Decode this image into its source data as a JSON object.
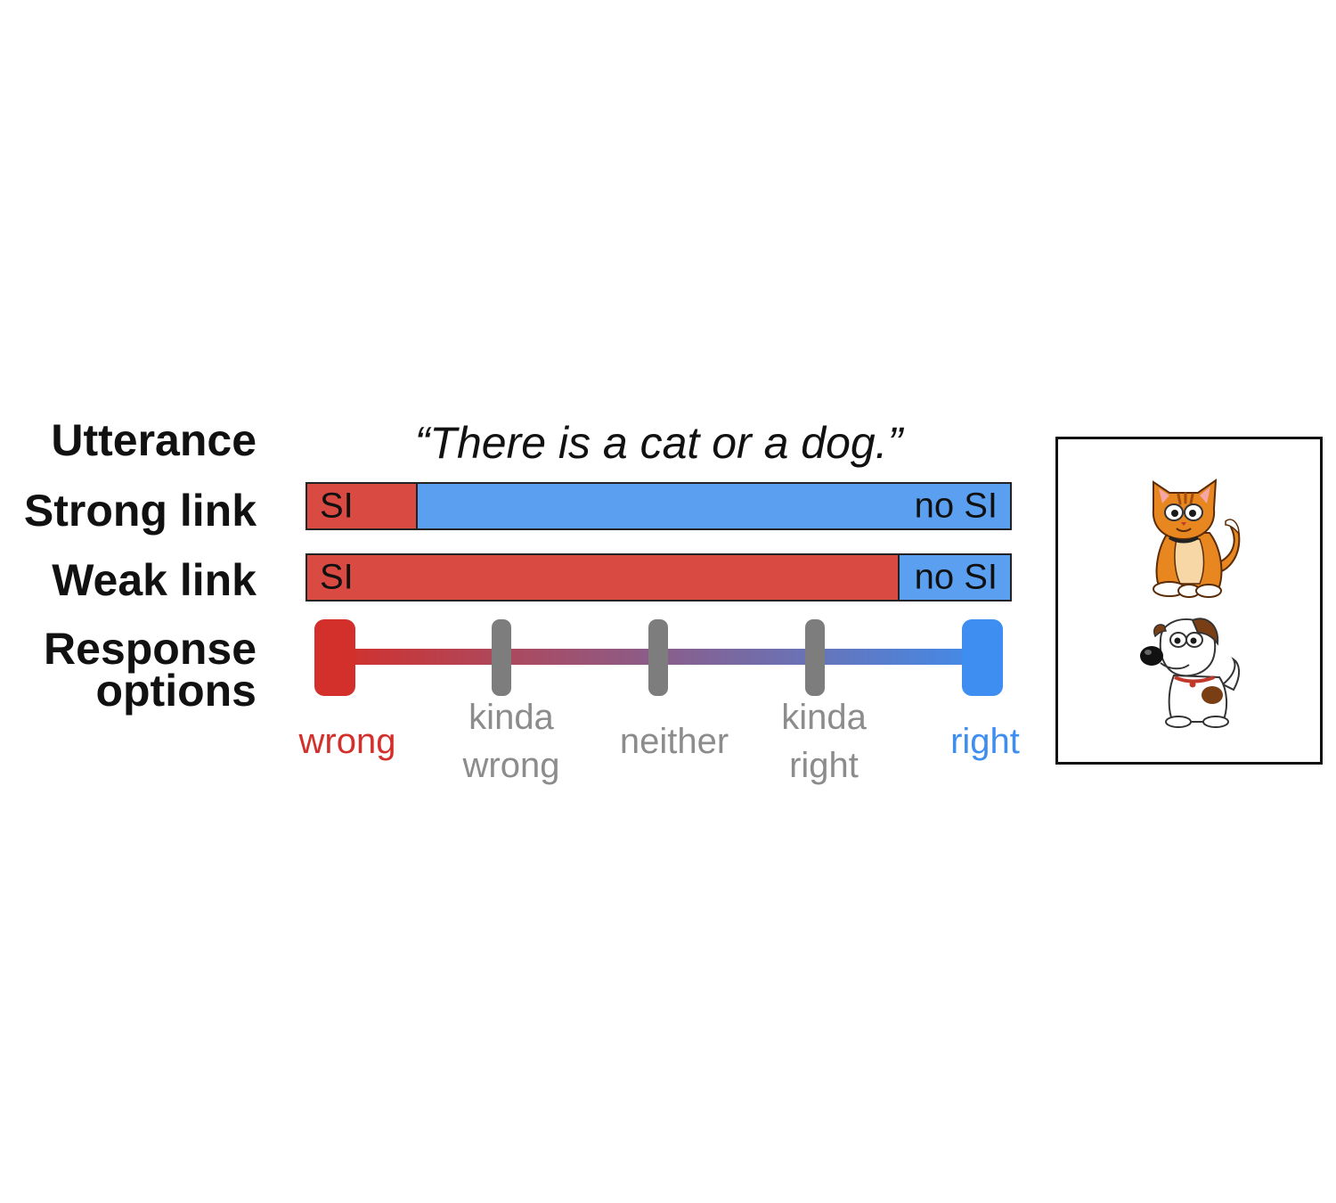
{
  "rows": {
    "utterance_label": "Utterance",
    "strong_label": "Strong link",
    "weak_label": "Weak link",
    "response_label_line1": "Response",
    "response_label_line2": "options"
  },
  "utterance": "“There is a cat or a dog.”",
  "strong_link": {
    "si_fraction": 0.155,
    "si_label": "SI",
    "nosi_label": "no SI"
  },
  "weak_link": {
    "si_fraction": 0.84,
    "si_label": "SI",
    "nosi_label": "no SI"
  },
  "response_options": [
    {
      "line1": "wrong",
      "line2": "",
      "color": "#d3302b"
    },
    {
      "line1": "kinda",
      "line2": "wrong",
      "color": "#8c8c8c"
    },
    {
      "line1": "neither",
      "line2": "",
      "color": "#8c8c8c"
    },
    {
      "line1": "kinda",
      "line2": "right",
      "color": "#8c8c8c"
    },
    {
      "line1": "right",
      "line2": "",
      "color": "#3d8ef0"
    }
  ],
  "colors": {
    "si": "#d94a43",
    "nosi": "#5b9ff0",
    "scale_left": "#d3302b",
    "scale_right": "#3d8ef0",
    "tick": "#7d7d7d"
  },
  "stimulus": {
    "items": [
      "cat-icon",
      "dog-icon"
    ]
  }
}
